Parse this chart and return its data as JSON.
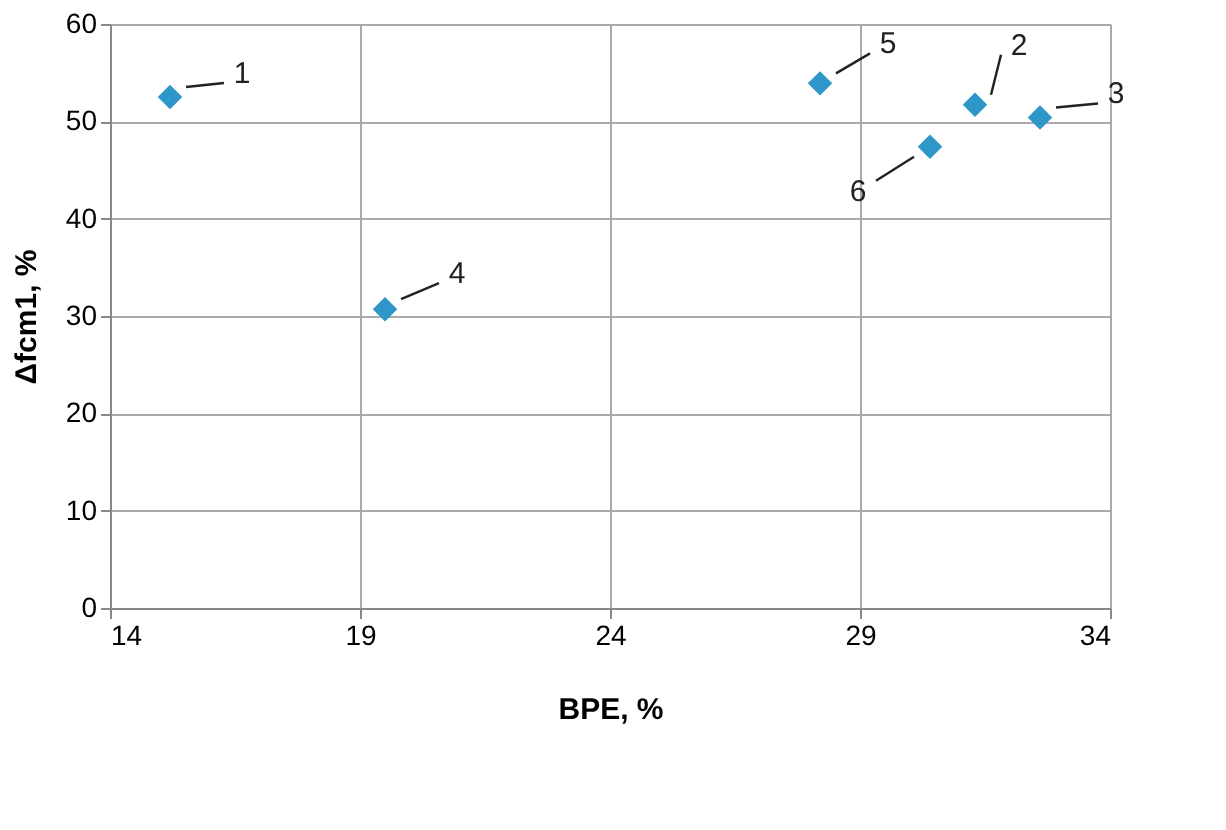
{
  "chart_data": {
    "type": "scatter",
    "xlabel": "BPE, %",
    "ylabel": "Δfcm1, %",
    "x": [
      15.2,
      31.3,
      32.6,
      19.5,
      28.2,
      30.4
    ],
    "values": [
      52.5,
      51.7,
      50.4,
      30.7,
      53.9,
      47.4
    ],
    "color": "#2e96c8",
    "marker": "diamond",
    "xlim": [
      14,
      34
    ],
    "xticks": [
      14,
      19,
      24,
      29,
      34
    ],
    "ylim": [
      0,
      60
    ],
    "yticks": [
      0,
      10,
      20,
      30,
      40,
      50,
      60
    ],
    "grid": true,
    "annotations": [
      {
        "text": "1",
        "x": 15.2,
        "y": 52.5
      },
      {
        "text": "2",
        "x": 31.3,
        "y": 51.7
      },
      {
        "text": "3",
        "x": 32.6,
        "y": 50.4
      },
      {
        "text": "4",
        "x": 19.5,
        "y": 30.7
      },
      {
        "text": "5",
        "x": 28.2,
        "y": 53.9
      },
      {
        "text": "6",
        "x": 30.4,
        "y": 47.4
      }
    ]
  }
}
